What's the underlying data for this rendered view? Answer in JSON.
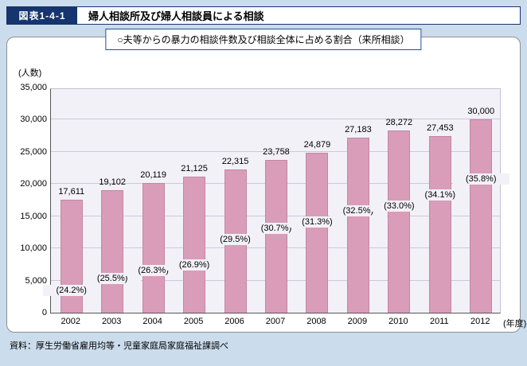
{
  "header": {
    "figure_label": "図表1-4-1",
    "title": "婦人相談所及び婦人相談員による相談"
  },
  "subtitle": "○夫等からの暴力の相談件数及び相談全体に占める割合（来所相談）",
  "source": "資料：厚生労働省雇用均等・児童家庭局家庭福祉課調べ",
  "colors": {
    "page_bg": "#cbdcec",
    "header_label_bg": "#16356e",
    "bar": "#d99db9",
    "plot_bg": "#f3f1f8"
  },
  "chart_data": {
    "type": "bar",
    "title": "夫等からの暴力の相談件数及び相談全体に占める割合（来所相談）",
    "unit_label": "(人数)",
    "x_axis_suffix": "(年度)",
    "categories": [
      "2002",
      "2003",
      "2004",
      "2005",
      "2006",
      "2007",
      "2008",
      "2009",
      "2010",
      "2011",
      "2012"
    ],
    "values": [
      17611,
      19102,
      20119,
      21125,
      22315,
      23758,
      24879,
      27183,
      28272,
      27453,
      30000
    ],
    "value_labels": [
      "17,611",
      "19,102",
      "20,119",
      "21,125",
      "22,315",
      "23,758",
      "24,879",
      "27,183",
      "28,272",
      "27,453",
      "30,000"
    ],
    "percents": [
      24.2,
      25.5,
      26.3,
      26.9,
      29.5,
      30.7,
      31.3,
      32.5,
      33.0,
      34.1,
      35.8
    ],
    "percent_labels": [
      "(24.2%)",
      "(25.5%)",
      "(26.3%)",
      "(26.9%)",
      "(29.5%)",
      "(30.7%)",
      "(31.3%)",
      "(32.5%)",
      "(33.0%)",
      "(34.1%)",
      "(35.8%)"
    ],
    "ylim": [
      0,
      35000
    ],
    "ytick_step": 5000,
    "yticks": [
      "0",
      "5,000",
      "10,000",
      "15,000",
      "20,000",
      "25,000",
      "30,000",
      "35,000"
    ],
    "grid": true,
    "legend": "none"
  }
}
